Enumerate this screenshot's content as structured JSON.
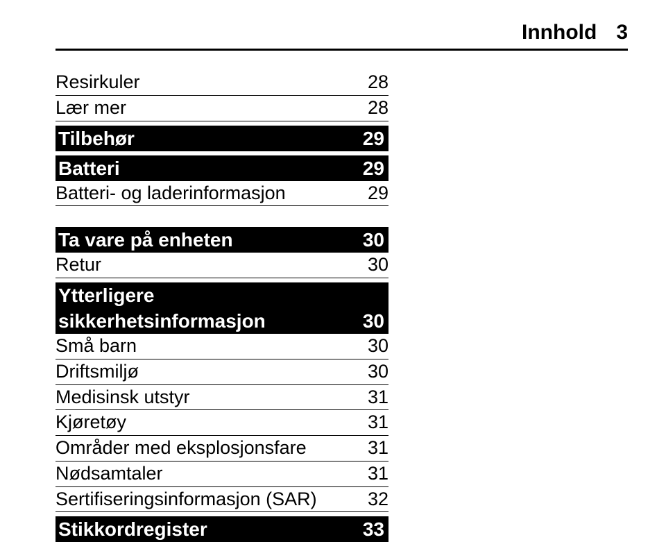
{
  "header": {
    "title": "Innhold",
    "page": "3"
  },
  "sections": [
    {
      "type": "row",
      "label": "Resirkuler",
      "page": "28"
    },
    {
      "type": "row",
      "label": "Lær mer",
      "page": "28"
    },
    {
      "type": "gaps"
    },
    {
      "type": "sec",
      "label": "Tilbehør",
      "page": "29"
    },
    {
      "type": "gaps"
    },
    {
      "type": "sec",
      "label": "Batteri",
      "page": "29"
    },
    {
      "type": "row",
      "label": "Batteri- og laderinformasjon",
      "page": "29"
    },
    {
      "type": "gapl"
    },
    {
      "type": "sec",
      "label": "Ta vare på enheten",
      "page": "30"
    },
    {
      "type": "row",
      "label": "Retur",
      "page": "30"
    },
    {
      "type": "gaps"
    },
    {
      "type": "sec2",
      "label1": "Ytterligere",
      "label2": "sikkerhetsinformasjon",
      "page": "30"
    },
    {
      "type": "row",
      "label": "Små barn",
      "page": "30"
    },
    {
      "type": "row",
      "label": "Driftsmiljø",
      "page": "30"
    },
    {
      "type": "row",
      "label": "Medisinsk utstyr",
      "page": "31"
    },
    {
      "type": "row",
      "label": "Kjøretøy",
      "page": "31"
    },
    {
      "type": "row",
      "label": "Områder med eksplosjonsfare",
      "page": "31"
    },
    {
      "type": "row",
      "label": "Nødsamtaler",
      "page": "31"
    },
    {
      "type": "row",
      "label": "Sertifiseringsinformasjon (SAR)",
      "page": "32"
    },
    {
      "type": "gaps"
    },
    {
      "type": "sec",
      "label": "Stikkordregister",
      "page": "33"
    }
  ]
}
